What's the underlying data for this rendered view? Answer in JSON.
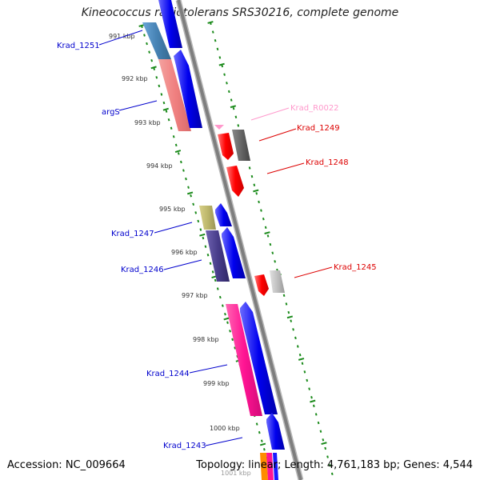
{
  "title": "Kineococcus radiotolerans SRS30216, complete genome",
  "footer": {
    "accession": "Accession: NC_009664",
    "stats": "Topology: linear; Length: 4,761,183 bp; Genes: 4,544"
  },
  "ticks": [
    "991 kbp",
    "992 kbp",
    "993 kbp",
    "994 kbp",
    "995 kbp",
    "996 kbp",
    "997 kbp",
    "998 kbp",
    "999 kbp",
    "1000 kbp",
    "1001 kbp"
  ],
  "genes": [
    {
      "label": "Krad_1251",
      "color": "#00008b",
      "strand": "left"
    },
    {
      "label": "argS",
      "color": "#0000cd",
      "strand": "left"
    },
    {
      "label": "Krad_R0022",
      "color": "#ff99cc",
      "strand": "right"
    },
    {
      "label": "Krad_1249",
      "color": "#dd0000",
      "strand": "right"
    },
    {
      "label": "Krad_1248",
      "color": "#dd0000",
      "strand": "right"
    },
    {
      "label": "Krad_1247",
      "color": "#0000cd",
      "strand": "left"
    },
    {
      "label": "Krad_1246",
      "color": "#0000cd",
      "strand": "left"
    },
    {
      "label": "Krad_1245",
      "color": "#dd0000",
      "strand": "right"
    },
    {
      "label": "Krad_1244",
      "color": "#0000cd",
      "strand": "left"
    },
    {
      "label": "Krad_1243",
      "color": "#0000cd",
      "strand": "left"
    }
  ],
  "colors": {
    "forward_cds": "#1a1aff",
    "reverse_cds": "#ff0000",
    "backbone": "#888888",
    "tick_dots": "#008000"
  }
}
